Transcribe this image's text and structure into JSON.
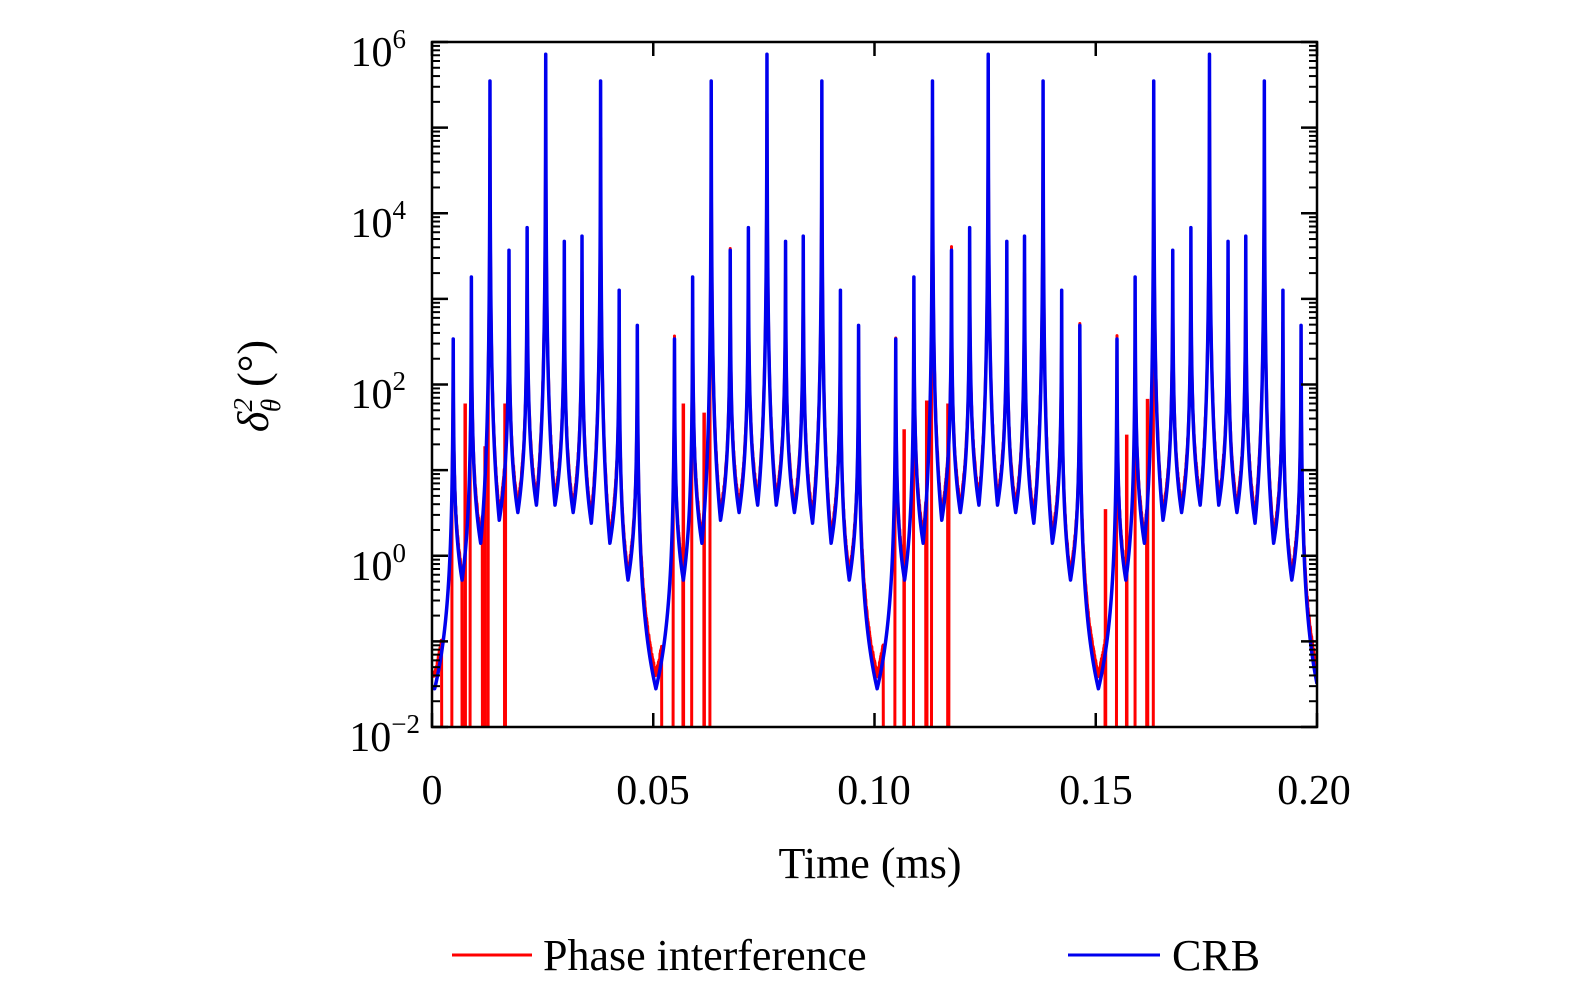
{
  "chart_data": {
    "type": "line",
    "xlabel": "Time (ms)",
    "ylabel": {
      "symbol": "δ",
      "sub": "θ",
      "sup": "2",
      "unit": "(°)"
    },
    "xlim": [
      0,
      0.2
    ],
    "ylim": [
      0.01,
      1000000
    ],
    "yscale": "log",
    "grid": false,
    "legend_position": "bottom",
    "x_ticks": [
      "0",
      "0.05",
      "0.10",
      "0.15",
      "0.20"
    ],
    "x_tick_values": [
      0,
      0.05,
      0.1,
      0.15,
      0.2
    ],
    "y_ticks": [
      {
        "base": "10",
        "exp": "6",
        "value": 1000000
      },
      {
        "base": "10",
        "exp": "4",
        "value": 10000
      },
      {
        "base": "10",
        "exp": "2",
        "value": 100
      },
      {
        "base": "10",
        "exp": "0",
        "value": 1
      },
      {
        "base": "10",
        "exp": "−2",
        "value": 0.01
      }
    ],
    "series": [
      {
        "name": "Phase interference",
        "color": "#ff0000",
        "x": [
          0,
          0.0006,
          0.0048,
          0.0068,
          0.0089,
          0.011,
          0.0131,
          0.0152,
          0.0174,
          0.0194,
          0.0215,
          0.0236,
          0.0257,
          0.0278,
          0.0299,
          0.0319,
          0.0339,
          0.036,
          0.0381,
          0.0402,
          0.0423,
          0.0443,
          0.0464,
          0.0506,
          0.0548,
          0.0568,
          0.0589,
          0.061,
          0.0631,
          0.0652,
          0.0674,
          0.0694,
          0.0715,
          0.0736,
          0.0757,
          0.0778,
          0.0799,
          0.0819,
          0.0839,
          0.086,
          0.0881,
          0.0902,
          0.0923,
          0.0943,
          0.0964,
          0.1006,
          0.1048,
          0.1068,
          0.1089,
          0.111,
          0.1131,
          0.1152,
          0.1174,
          0.1194,
          0.1215,
          0.1236,
          0.1257,
          0.1278,
          0.1299,
          0.1319,
          0.1339,
          0.136,
          0.1381,
          0.1402,
          0.1423,
          0.1443,
          0.1464,
          0.1506,
          0.1548,
          0.1568,
          0.1589,
          0.161,
          0.1631,
          0.1652,
          0.1674,
          0.1694,
          0.1715,
          0.1736,
          0.1757,
          0.1778,
          0.1799,
          0.1819,
          0.1839,
          0.186,
          0.1881,
          0.1902,
          0.1923,
          0.1943,
          0.1964,
          0.2
        ],
        "y": [
          0.04,
          0.04,
          340,
          0.62,
          1800,
          1.7,
          350000,
          3.1,
          3700,
          3.8,
          6800,
          4.6,
          720000,
          4.6,
          4700,
          3.8,
          5400,
          2.9,
          350000,
          1.7,
          1260,
          0.62,
          490,
          0.04,
          340,
          0.62,
          1800,
          1.7,
          350000,
          3.1,
          3700,
          3.8,
          6800,
          4.6,
          720000,
          4.6,
          4700,
          3.8,
          5400,
          2.9,
          350000,
          1.7,
          1260,
          0.62,
          490,
          0.04,
          340,
          0.62,
          1800,
          1.7,
          350000,
          3.1,
          3700,
          3.8,
          6800,
          4.6,
          720000,
          4.6,
          4700,
          3.8,
          5400,
          2.9,
          350000,
          1.7,
          1260,
          0.62,
          490,
          0.04,
          340,
          0.62,
          1800,
          1.7,
          350000,
          3.1,
          3700,
          3.8,
          6800,
          4.6,
          720000,
          4.6,
          4700,
          3.8,
          5400,
          2.9,
          350000,
          1.7,
          1260,
          0.62,
          490,
          0.045
        ],
        "dropouts": [
          [
            0.0022,
            0.0045
          ],
          [
            0.0068,
            0.0086
          ],
          [
            0.0114,
            0.0127
          ],
          [
            0.0164,
            0.0166
          ],
          [
            0.0519,
            0.0545
          ],
          [
            0.0567,
            0.0587
          ],
          [
            0.0615,
            0.0628
          ],
          [
            0.102,
            0.1046
          ],
          [
            0.1067,
            0.1088
          ],
          [
            0.1116,
            0.1129
          ],
          [
            0.1166,
            0.1168
          ],
          [
            0.1521,
            0.1547
          ],
          [
            0.157,
            0.1589
          ],
          [
            0.1615,
            0.163
          ]
        ],
        "spikes": [
          [
            0.0075,
            60
          ],
          [
            0.012,
            19
          ],
          [
            0.0165,
            60
          ],
          [
            0.0568,
            60
          ],
          [
            0.0615,
            47
          ],
          [
            0.1067,
            30
          ],
          [
            0.1118,
            65
          ],
          [
            0.1166,
            60
          ],
          [
            0.1522,
            3.5
          ],
          [
            0.157,
            26
          ],
          [
            0.1617,
            68
          ]
        ]
      },
      {
        "name": "CRB",
        "color": "#0000ee",
        "x": [
          0,
          0.0006,
          0.0048,
          0.0068,
          0.0089,
          0.011,
          0.0131,
          0.0152,
          0.0174,
          0.0194,
          0.0215,
          0.0236,
          0.0257,
          0.0278,
          0.0299,
          0.0319,
          0.0339,
          0.036,
          0.0381,
          0.0402,
          0.0423,
          0.0443,
          0.0464,
          0.0506,
          0.0548,
          0.0568,
          0.0589,
          0.061,
          0.0631,
          0.0652,
          0.0674,
          0.0694,
          0.0715,
          0.0736,
          0.0757,
          0.0778,
          0.0799,
          0.0819,
          0.0839,
          0.086,
          0.0881,
          0.0902,
          0.0923,
          0.0943,
          0.0964,
          0.1006,
          0.1048,
          0.1068,
          0.1089,
          0.111,
          0.1131,
          0.1152,
          0.1174,
          0.1194,
          0.1215,
          0.1236,
          0.1257,
          0.1278,
          0.1299,
          0.1319,
          0.1339,
          0.136,
          0.1381,
          0.1402,
          0.1423,
          0.1443,
          0.1464,
          0.1506,
          0.1548,
          0.1568,
          0.1589,
          0.161,
          0.1631,
          0.1652,
          0.1674,
          0.1694,
          0.1715,
          0.1736,
          0.1757,
          0.1778,
          0.1799,
          0.1819,
          0.1839,
          0.186,
          0.1881,
          0.1902,
          0.1923,
          0.1943,
          0.1964,
          0.2
        ],
        "y": [
          0.03,
          0.028,
          340,
          0.52,
          1800,
          1.4,
          350000,
          2.6,
          3700,
          3.2,
          6800,
          3.9,
          720000,
          3.9,
          4700,
          3.2,
          5400,
          2.4,
          350000,
          1.4,
          1260,
          0.52,
          490,
          0.028,
          340,
          0.52,
          1800,
          1.4,
          350000,
          2.6,
          3700,
          3.2,
          6800,
          3.9,
          720000,
          3.9,
          4700,
          3.2,
          5400,
          2.4,
          350000,
          1.4,
          1260,
          0.52,
          490,
          0.028,
          340,
          0.52,
          1800,
          1.4,
          350000,
          2.6,
          3700,
          3.2,
          6800,
          3.9,
          720000,
          3.9,
          4700,
          3.2,
          5400,
          2.4,
          350000,
          1.4,
          1260,
          0.52,
          490,
          0.028,
          340,
          0.52,
          1800,
          1.4,
          350000,
          2.6,
          3700,
          3.2,
          6800,
          3.9,
          720000,
          3.9,
          4700,
          3.2,
          5400,
          2.4,
          350000,
          1.4,
          1260,
          0.52,
          490,
          0.032
        ]
      }
    ]
  }
}
